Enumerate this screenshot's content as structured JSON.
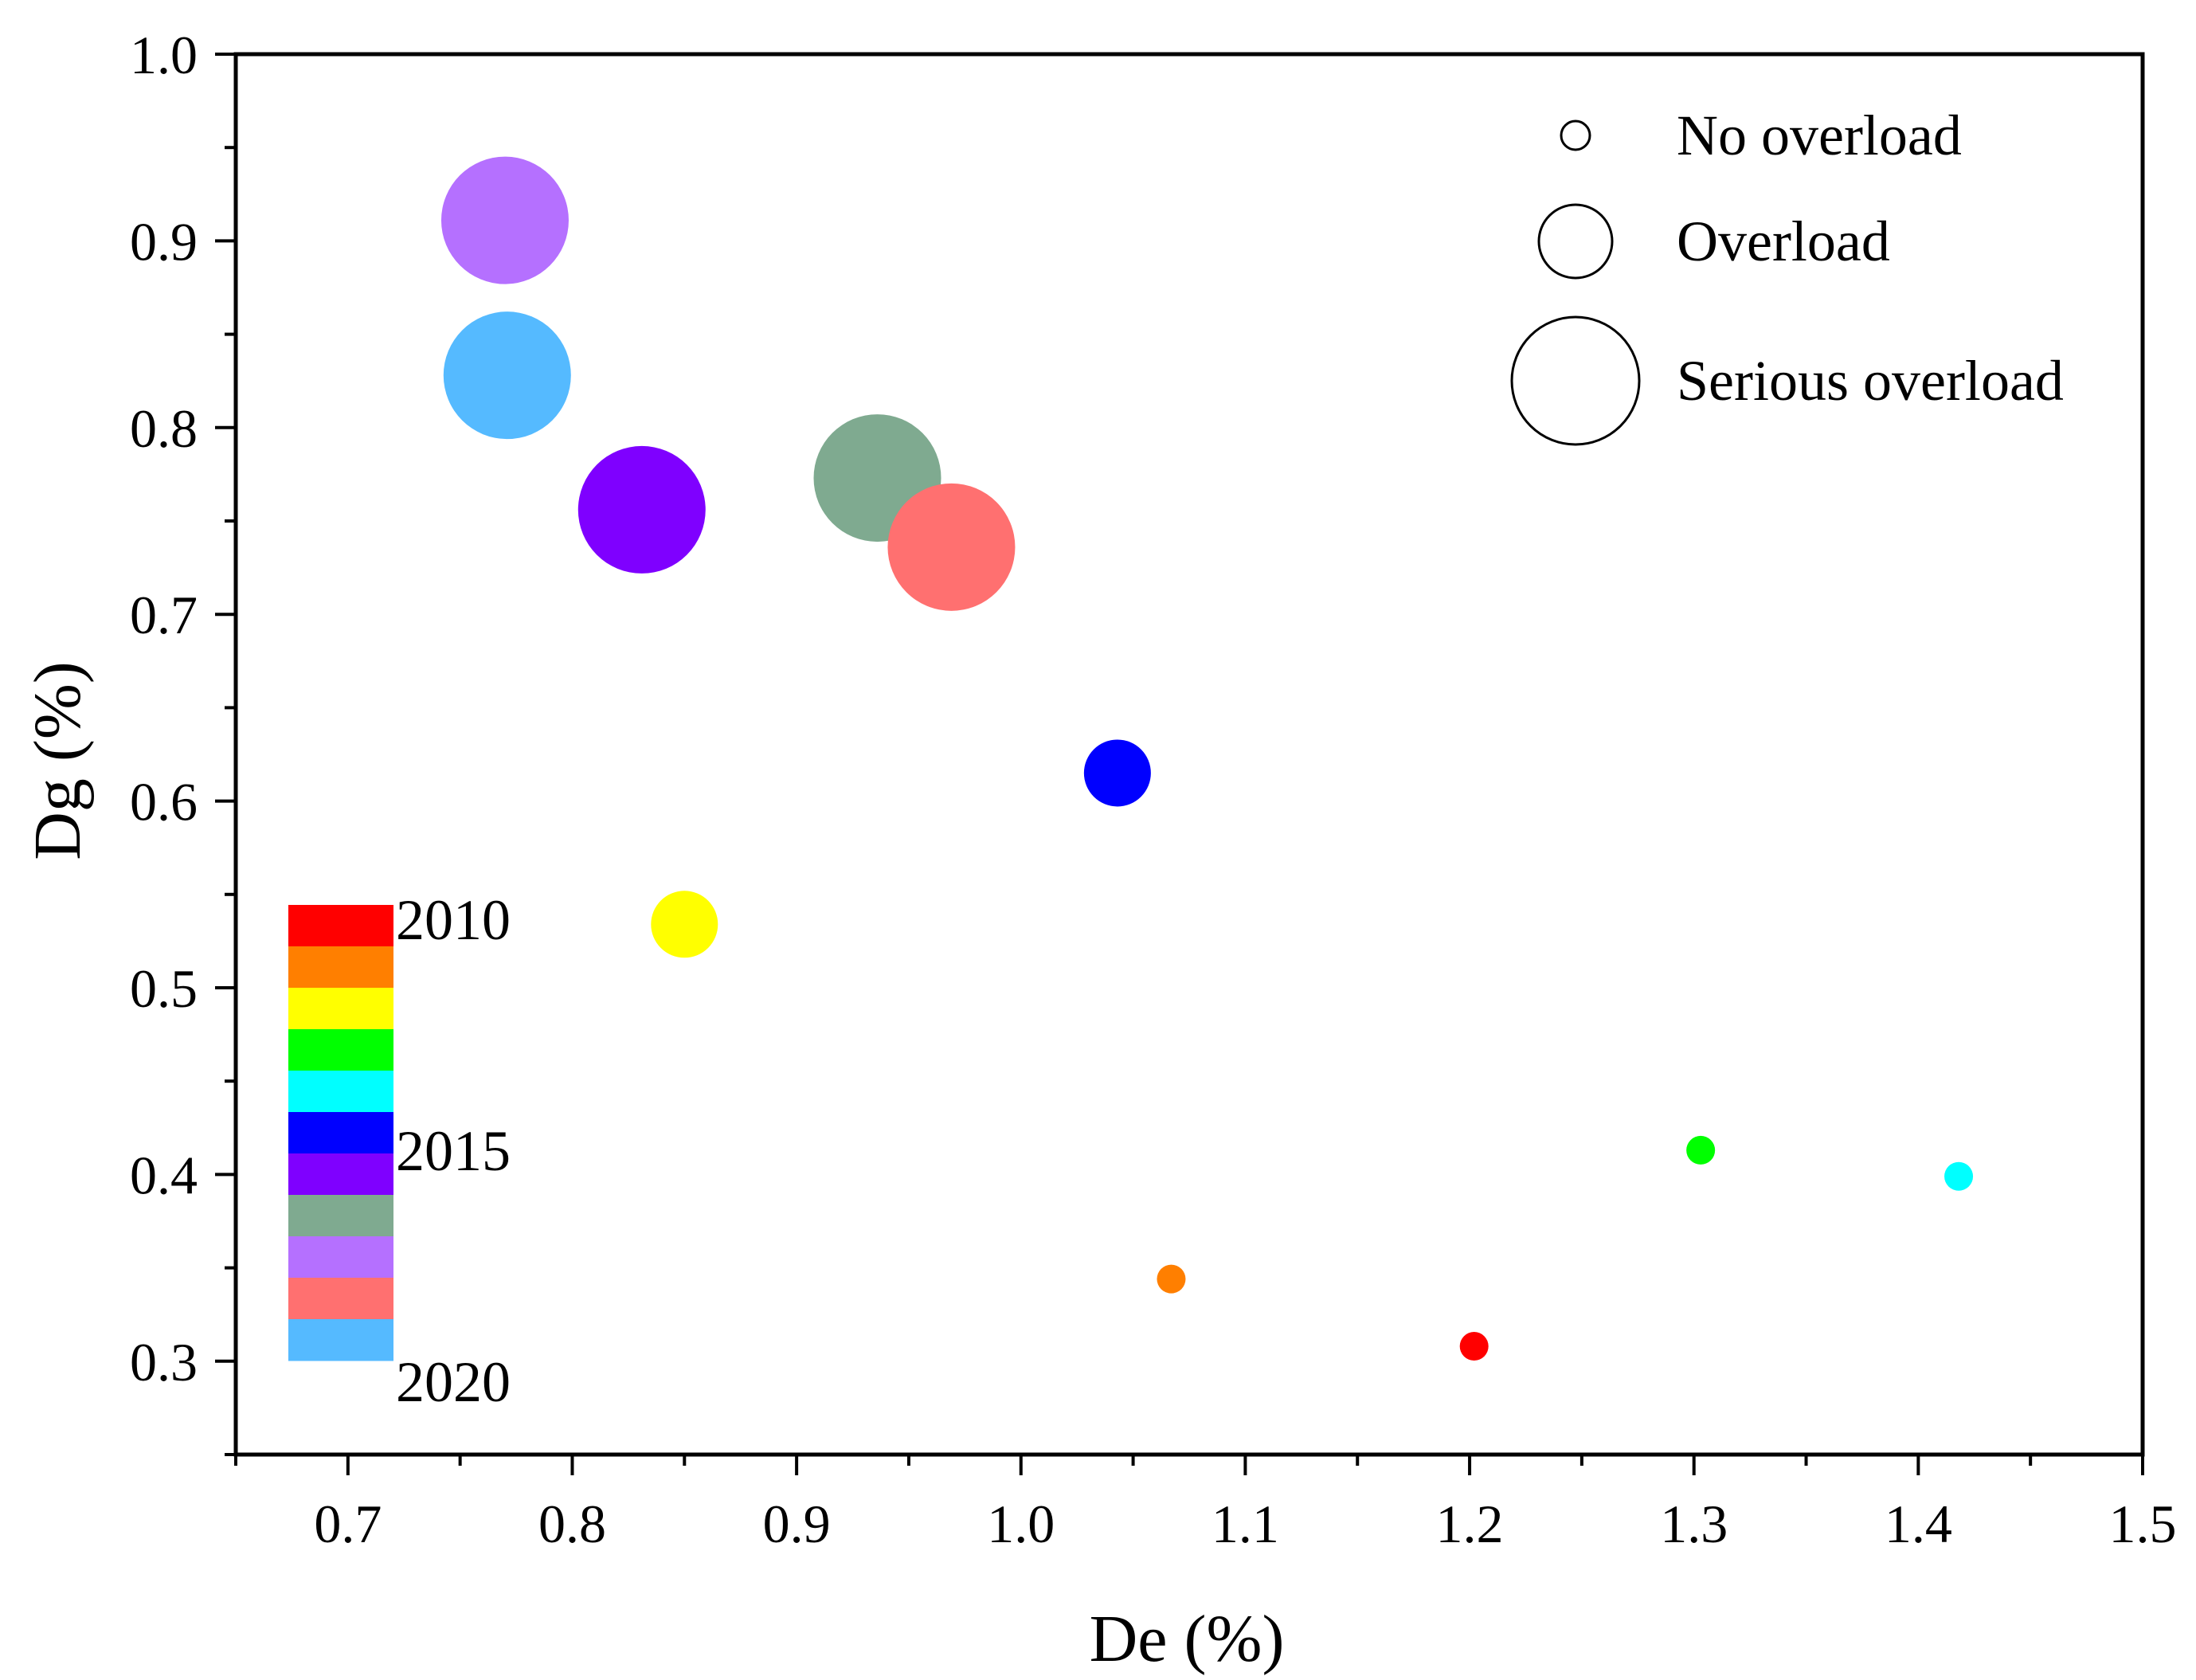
{
  "chart_data": {
    "type": "scatter",
    "title": "",
    "xlabel": "De (%)",
    "ylabel": "Dg (%)",
    "xlim": [
      0.65,
      1.5
    ],
    "ylim": [
      0.25,
      1.0
    ],
    "x_ticks": [
      "0.7",
      "0.8",
      "0.9",
      "1.0",
      "1.1",
      "1.2",
      "1.3",
      "1.4",
      "1.5"
    ],
    "y_ticks": [
      "0.3",
      "0.4",
      "0.5",
      "0.6",
      "0.7",
      "0.8",
      "0.9",
      "1.0"
    ],
    "grid": false,
    "points": [
      {
        "year": 2010,
        "x": 1.202,
        "y": 0.308,
        "class": "No overload",
        "color": "#ff0000"
      },
      {
        "year": 2011,
        "x": 1.067,
        "y": 0.344,
        "class": "No overload",
        "color": "#ff7f00"
      },
      {
        "year": 2012,
        "x": 0.85,
        "y": 0.534,
        "class": "Overload",
        "color": "#ffff00"
      },
      {
        "year": 2013,
        "x": 1.303,
        "y": 0.413,
        "class": "No overload",
        "color": "#00ff00"
      },
      {
        "year": 2014,
        "x": 1.418,
        "y": 0.399,
        "class": "No overload",
        "color": "#00ffff"
      },
      {
        "year": 2015,
        "x": 1.043,
        "y": 0.615,
        "class": "Overload",
        "color": "#0000ff"
      },
      {
        "year": 2016,
        "x": 0.831,
        "y": 0.756,
        "class": "Serious overload",
        "color": "#7f00ff"
      },
      {
        "year": 2017,
        "x": 0.936,
        "y": 0.773,
        "class": "Serious overload",
        "color": "#7faa90"
      },
      {
        "year": 2018,
        "x": 0.77,
        "y": 0.911,
        "class": "Serious overload",
        "color": "#b570ff"
      },
      {
        "year": 2019,
        "x": 0.969,
        "y": 0.736,
        "class": "Serious overload",
        "color": "#ff7070"
      },
      {
        "year": 2020,
        "x": 0.771,
        "y": 0.828,
        "class": "Serious overload",
        "color": "#55baff"
      }
    ],
    "size_legend": {
      "position": "top-right",
      "entries": [
        "No overload",
        "Overload",
        "Serious overload"
      ]
    },
    "color_legend": {
      "position": "bottom-left",
      "labels": [
        "2010",
        "2015",
        "2020"
      ],
      "colors": [
        "#ff0000",
        "#ff7f00",
        "#ffff00",
        "#00ff00",
        "#00ffff",
        "#0000ff",
        "#7f00ff",
        "#7faa90",
        "#b570ff",
        "#ff7070",
        "#55baff"
      ]
    }
  }
}
